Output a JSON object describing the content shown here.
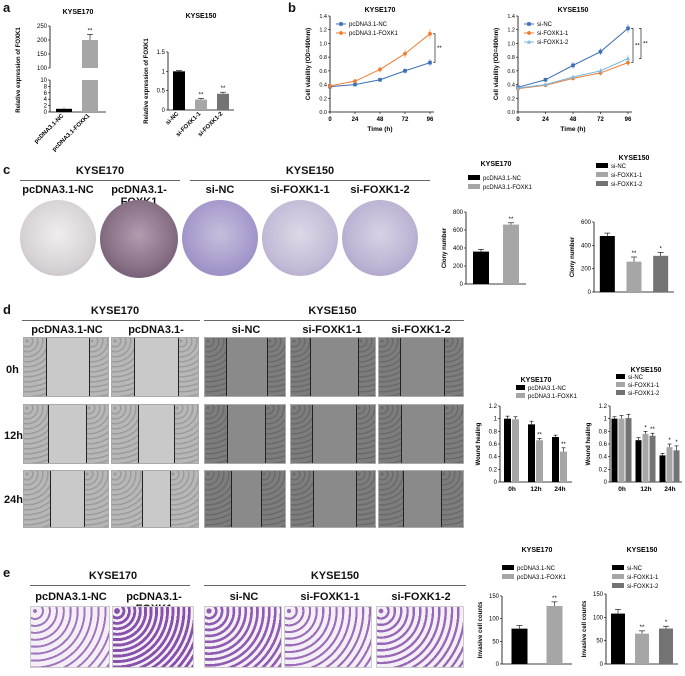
{
  "panels": {
    "a": {
      "letter": "a"
    },
    "b": {
      "letter": "b"
    },
    "c": {
      "letter": "c"
    },
    "d": {
      "letter": "d"
    },
    "e": {
      "letter": "e"
    }
  },
  "headers": {
    "kyse170": "KYSE170",
    "kyse150": "KYSE150"
  },
  "groups": {
    "pc_nc": "pcDNA3.1-NC",
    "pc_foxk1": "pcDNA3.1-FOXK1",
    "si_nc": "si-NC",
    "si_foxk1_1": "si-FOXK1-1",
    "si_foxk1_2": "si-FOXK1-2"
  },
  "timepoints": [
    "0h",
    "12h",
    "24h"
  ],
  "colors": {
    "black_bar": "#000000",
    "grey_bar": "#a6a6a6",
    "dark_grey_bar": "#737373",
    "line_blue": "#3d6fb6",
    "line_orange": "#ee7d31",
    "line_lightblue": "#79b7e0",
    "dish_purple": "#8a5d9e",
    "stain_purple": "#7b3fa3",
    "wound_grey": "#8e8e8e"
  },
  "chart_data": [
    {
      "id": "a1",
      "type": "bar",
      "title": "KYSE170",
      "ylabel": "Relative expression of FOXK1",
      "categories": [
        "pcDNA3.1-NC",
        "pcDNA3.1-FOXK1"
      ],
      "values": [
        1,
        200
      ],
      "errors": [
        0.3,
        20
      ],
      "colors": [
        "#000000",
        "#a6a6a6"
      ],
      "broken_axis": true,
      "ylim_lower": [
        0,
        10
      ],
      "ylim_upper": [
        100,
        250
      ],
      "yticks_lower": [
        0,
        2,
        4,
        6,
        8,
        10
      ],
      "yticks_upper": [
        100,
        150,
        200,
        250
      ],
      "annotations": [
        "",
        "**"
      ]
    },
    {
      "id": "a2",
      "type": "bar",
      "title": "KYSE150",
      "ylabel": "Relative expression of FOXK1",
      "categories": [
        "si-NC",
        "si-FOXK1-1",
        "si-FOXK1-2"
      ],
      "values": [
        1.0,
        0.27,
        0.42
      ],
      "errors": [
        0.02,
        0.03,
        0.04
      ],
      "colors": [
        "#000000",
        "#a6a6a6",
        "#737373"
      ],
      "ylim": [
        0,
        1.5
      ],
      "yticks": [
        0,
        0.5,
        1.0,
        1.5
      ],
      "annotations": [
        "",
        "**",
        "**"
      ]
    },
    {
      "id": "b1",
      "type": "line",
      "title": "KYSE170",
      "xlabel": "Time (h)",
      "ylabel": "Cell viability (OD=490nm)",
      "x": [
        0,
        24,
        48,
        72,
        96
      ],
      "ylim": [
        0,
        1.4
      ],
      "yticks": [
        0,
        0.2,
        0.4,
        0.6,
        0.8,
        1.0,
        1.2,
        1.4
      ],
      "series": [
        {
          "name": "pcDNA3.1-NC",
          "values": [
            0.37,
            0.4,
            0.47,
            0.6,
            0.72
          ],
          "errors": [
            0.02,
            0.02,
            0.03,
            0.04,
            0.05
          ],
          "color": "#3d6fb6",
          "marker": "square"
        },
        {
          "name": "pcDNA3.1-FOXK1",
          "values": [
            0.38,
            0.45,
            0.62,
            0.85,
            1.14
          ],
          "errors": [
            0.02,
            0.03,
            0.04,
            0.06,
            0.07
          ],
          "color": "#ee7d31",
          "marker": "circle"
        }
      ],
      "annotations": [
        "**"
      ]
    },
    {
      "id": "b2",
      "type": "line",
      "title": "KYSE150",
      "xlabel": "Time (h)",
      "ylabel": "Cell viability (OD=490nm)",
      "x": [
        0,
        24,
        48,
        72,
        96
      ],
      "ylim": [
        0,
        1.4
      ],
      "yticks": [
        0,
        0.2,
        0.4,
        0.6,
        0.8,
        1.0,
        1.2,
        1.4
      ],
      "series": [
        {
          "name": "si-NC",
          "values": [
            0.36,
            0.47,
            0.68,
            0.88,
            1.22
          ],
          "errors": [
            0.02,
            0.03,
            0.05,
            0.05,
            0.06
          ],
          "color": "#3d6fb6",
          "marker": "square"
        },
        {
          "name": "si-FOXK1-1",
          "values": [
            0.34,
            0.39,
            0.49,
            0.57,
            0.72
          ],
          "errors": [
            0.02,
            0.02,
            0.03,
            0.04,
            0.05
          ],
          "color": "#ee7d31",
          "marker": "circle"
        },
        {
          "name": "si-FOXK1-2",
          "values": [
            0.35,
            0.4,
            0.51,
            0.6,
            0.78
          ],
          "errors": [
            0.02,
            0.03,
            0.03,
            0.04,
            0.05
          ],
          "color": "#79b7e0",
          "marker": "triangle"
        }
      ],
      "annotations": [
        "**",
        "**"
      ]
    },
    {
      "id": "c1",
      "type": "bar",
      "title": "KYSE170",
      "ylabel": "Clony number",
      "categories": [
        "pcDNA3.1-NC",
        "pcDNA3.1-FOXK1"
      ],
      "values": [
        360,
        660
      ],
      "errors": [
        25,
        20
      ],
      "colors": [
        "#000000",
        "#a6a6a6"
      ],
      "ylim": [
        0,
        800
      ],
      "yticks": [
        0,
        200,
        400,
        600,
        800
      ],
      "annotations": [
        "",
        "**"
      ],
      "legend": "top-left"
    },
    {
      "id": "c2",
      "type": "bar",
      "title": "KYSE150",
      "ylabel": "Clony number",
      "categories": [
        "si-NC",
        "si-FOXK1-1",
        "si-FOXK1-2"
      ],
      "values": [
        480,
        260,
        310
      ],
      "errors": [
        25,
        40,
        30
      ],
      "colors": [
        "#000000",
        "#a6a6a6",
        "#737373"
      ],
      "ylim": [
        0,
        600
      ],
      "yticks": [
        0,
        200,
        400,
        600
      ],
      "annotations": [
        "",
        "**",
        "*"
      ],
      "legend": "top-right"
    },
    {
      "id": "d1",
      "type": "bar",
      "title": "KYSE170",
      "ylabel": "Wound healing",
      "categories": [
        "0h",
        "12h",
        "24h"
      ],
      "series": [
        {
          "name": "pcDNA3.1-NC",
          "values": [
            1.0,
            0.91,
            0.71
          ],
          "errors": [
            0.04,
            0.05,
            0.03
          ],
          "color": "#000000"
        },
        {
          "name": "pcDNA3.1-FOXK1",
          "values": [
            0.99,
            0.66,
            0.48
          ],
          "errors": [
            0.04,
            0.03,
            0.06
          ],
          "color": "#a6a6a6"
        }
      ],
      "ylim": [
        0,
        1.2
      ],
      "yticks": [
        0,
        0.2,
        0.4,
        0.6,
        0.8,
        1.0,
        1.2
      ],
      "annotations": [
        [
          "",
          ""
        ],
        [
          "",
          "**"
        ],
        [
          "",
          "**"
        ]
      ],
      "legend": "top-right"
    },
    {
      "id": "d2",
      "type": "bar",
      "title": "KYSE150",
      "ylabel": "Wound healing",
      "categories": [
        "0h",
        "12h",
        "24h"
      ],
      "series": [
        {
          "name": "si-NC",
          "values": [
            1.0,
            0.66,
            0.42
          ],
          "errors": [
            0.03,
            0.04,
            0.03
          ],
          "color": "#000000"
        },
        {
          "name": "si-FOXK1-1",
          "values": [
            1.0,
            0.76,
            0.55
          ],
          "errors": [
            0.05,
            0.04,
            0.05
          ],
          "color": "#a6a6a6"
        },
        {
          "name": "si-FOXK1-2",
          "values": [
            1.01,
            0.73,
            0.5
          ],
          "errors": [
            0.06,
            0.04,
            0.07
          ],
          "color": "#737373"
        }
      ],
      "ylim": [
        0,
        1.2
      ],
      "yticks": [
        0,
        0.2,
        0.4,
        0.6,
        0.8,
        1.0,
        1.2
      ],
      "annotations": [
        [
          "",
          "",
          ""
        ],
        [
          "",
          "*",
          "**"
        ],
        [
          "",
          "*",
          "*"
        ]
      ],
      "legend": "top-right"
    },
    {
      "id": "e1",
      "type": "bar",
      "title": "KYSE170",
      "ylabel": "Invasive cell counts",
      "categories": [
        "pcDNA3.1-NC",
        "pcDNA3.1-FOXK1"
      ],
      "values": [
        78,
        128
      ],
      "errors": [
        7,
        9
      ],
      "colors": [
        "#000000",
        "#a6a6a6"
      ],
      "ylim": [
        0,
        150
      ],
      "yticks": [
        0,
        50,
        100,
        150
      ],
      "annotations": [
        "",
        "**"
      ],
      "legend": "top-left"
    },
    {
      "id": "e2",
      "type": "bar",
      "title": "KYSE150",
      "ylabel": "Invasive cell counts",
      "categories": [
        "si-NC",
        "si-FOXK1-1",
        "si-FOXK1-2"
      ],
      "values": [
        108,
        65,
        76
      ],
      "errors": [
        9,
        6,
        5
      ],
      "colors": [
        "#000000",
        "#a6a6a6",
        "#737373"
      ],
      "ylim": [
        0,
        150
      ],
      "yticks": [
        0,
        50,
        100,
        150
      ],
      "annotations": [
        "",
        "**",
        "*"
      ],
      "legend": "top-right"
    }
  ]
}
